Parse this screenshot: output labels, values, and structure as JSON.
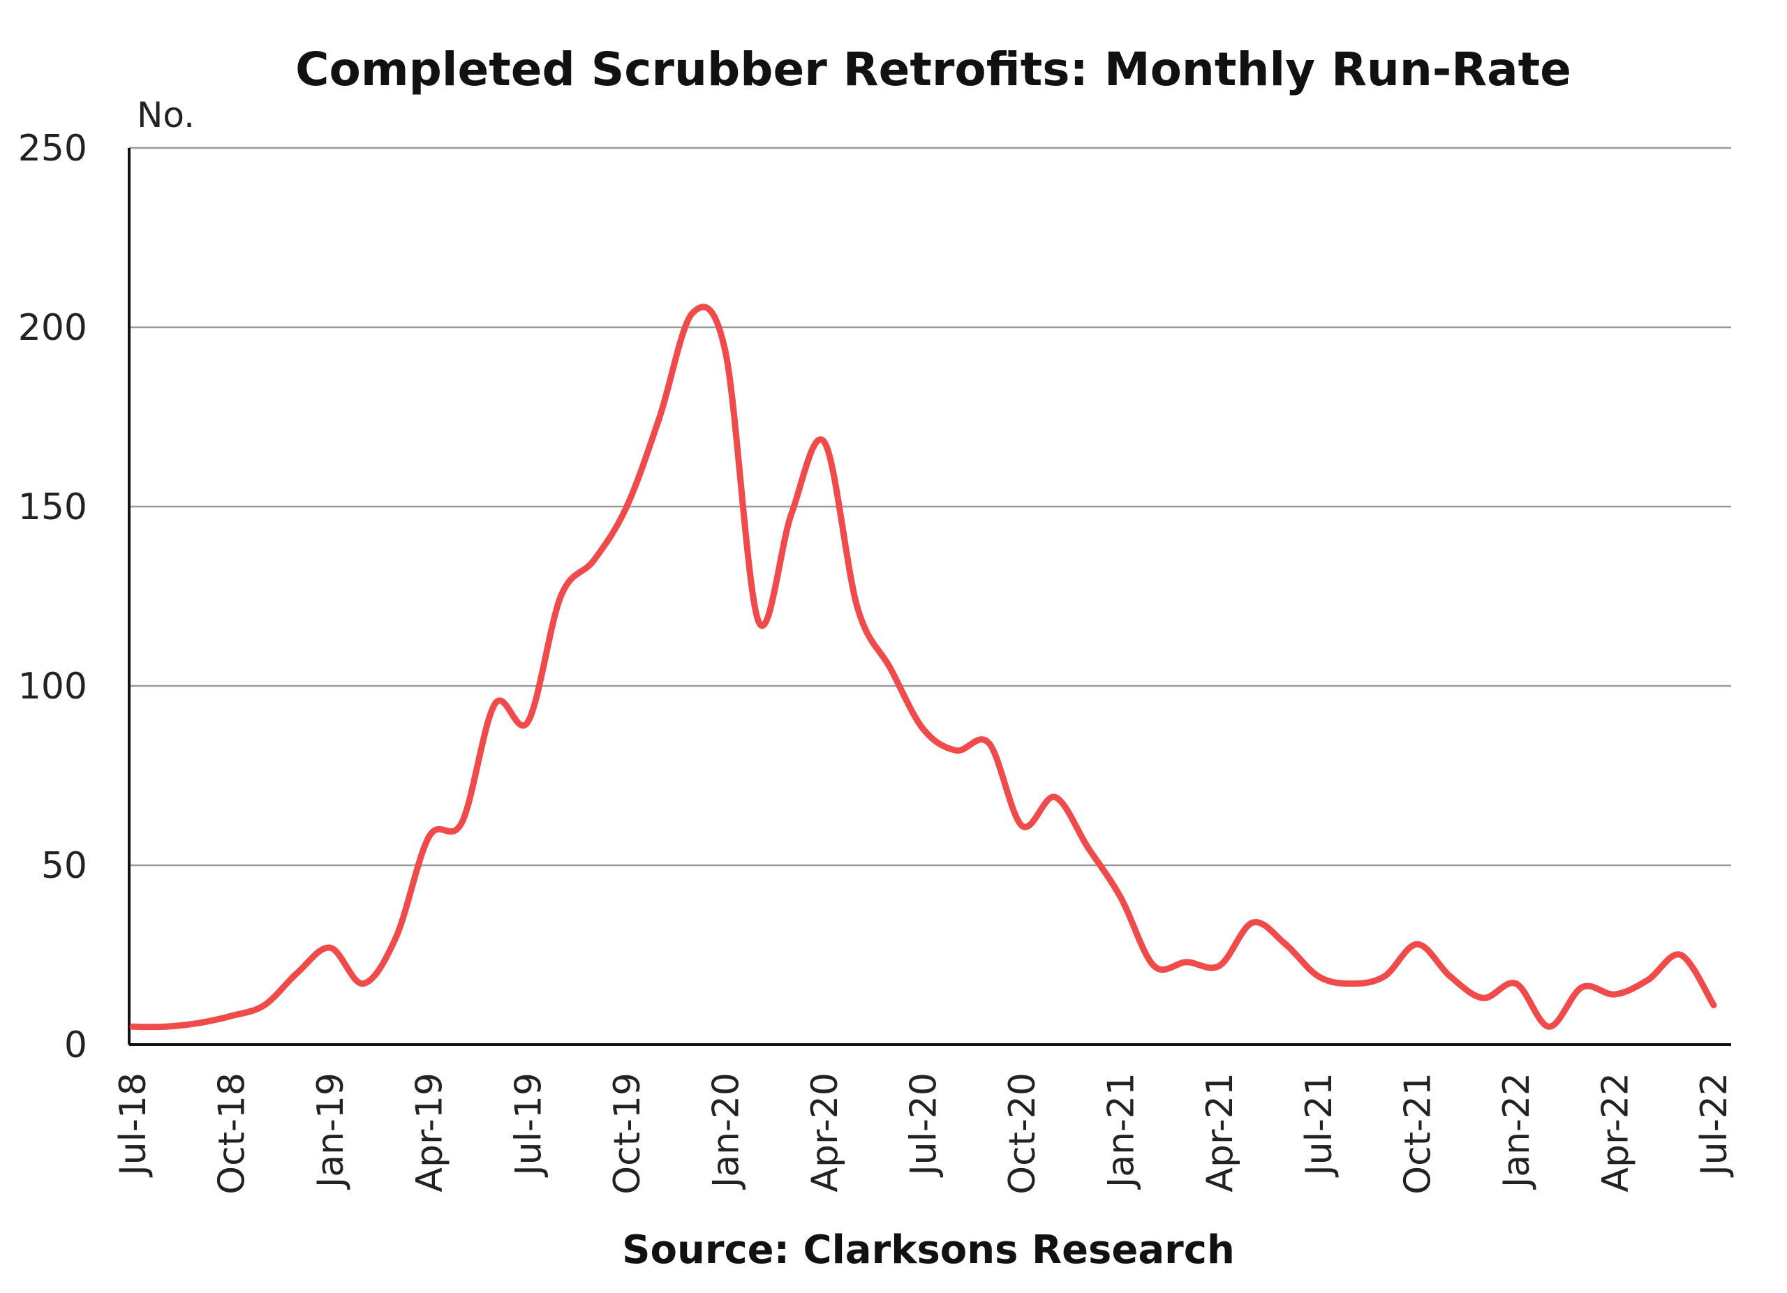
{
  "chart_data": {
    "type": "line",
    "title": "Completed Scrubber Retrofits: Monthly Run-Rate",
    "ylabel": "No.",
    "xlabel": "",
    "source": "Source: Clarksons Research",
    "ylim": [
      0,
      250
    ],
    "yticks": [
      0,
      50,
      100,
      150,
      200,
      250
    ],
    "grid": true,
    "legend": "none",
    "x_tick_labels": [
      "Jul-18",
      "Oct-18",
      "Jan-19",
      "Apr-19",
      "Jul-19",
      "Oct-19",
      "Jan-20",
      "Apr-20",
      "Jul-20",
      "Oct-20",
      "Jan-21",
      "Apr-21",
      "Jul-21",
      "Oct-21",
      "Jan-22",
      "Apr-22",
      "Jul-22"
    ],
    "x": [
      "Jul-18",
      "Aug-18",
      "Sep-18",
      "Oct-18",
      "Nov-18",
      "Dec-18",
      "Jan-19",
      "Feb-19",
      "Mar-19",
      "Apr-19",
      "May-19",
      "Jun-19",
      "Jul-19",
      "Aug-19",
      "Sep-19",
      "Oct-19",
      "Nov-19",
      "Dec-19",
      "Jan-20",
      "Feb-20",
      "Mar-20",
      "Apr-20",
      "May-20",
      "Jun-20",
      "Jul-20",
      "Aug-20",
      "Sep-20",
      "Oct-20",
      "Nov-20",
      "Dec-20",
      "Jan-21",
      "Feb-21",
      "Mar-21",
      "Apr-21",
      "May-21",
      "Jun-21",
      "Jul-21",
      "Aug-21",
      "Sep-21",
      "Oct-21",
      "Nov-21",
      "Dec-21",
      "Jan-22",
      "Feb-22",
      "Mar-22",
      "Apr-22",
      "May-22",
      "Jun-22",
      "Jul-22"
    ],
    "series": [
      {
        "color": "#f04a4a",
        "values": [
          5,
          5,
          6,
          8,
          11,
          20,
          27,
          17,
          30,
          58,
          62,
          95,
          90,
          125,
          135,
          150,
          175,
          204,
          193,
          118,
          148,
          168,
          122,
          105,
          88,
          82,
          84,
          61,
          69,
          55,
          41,
          22,
          23,
          22,
          34,
          28,
          19,
          17,
          19,
          28,
          19,
          13,
          17,
          5,
          16,
          14,
          18,
          25,
          11
        ]
      }
    ]
  }
}
